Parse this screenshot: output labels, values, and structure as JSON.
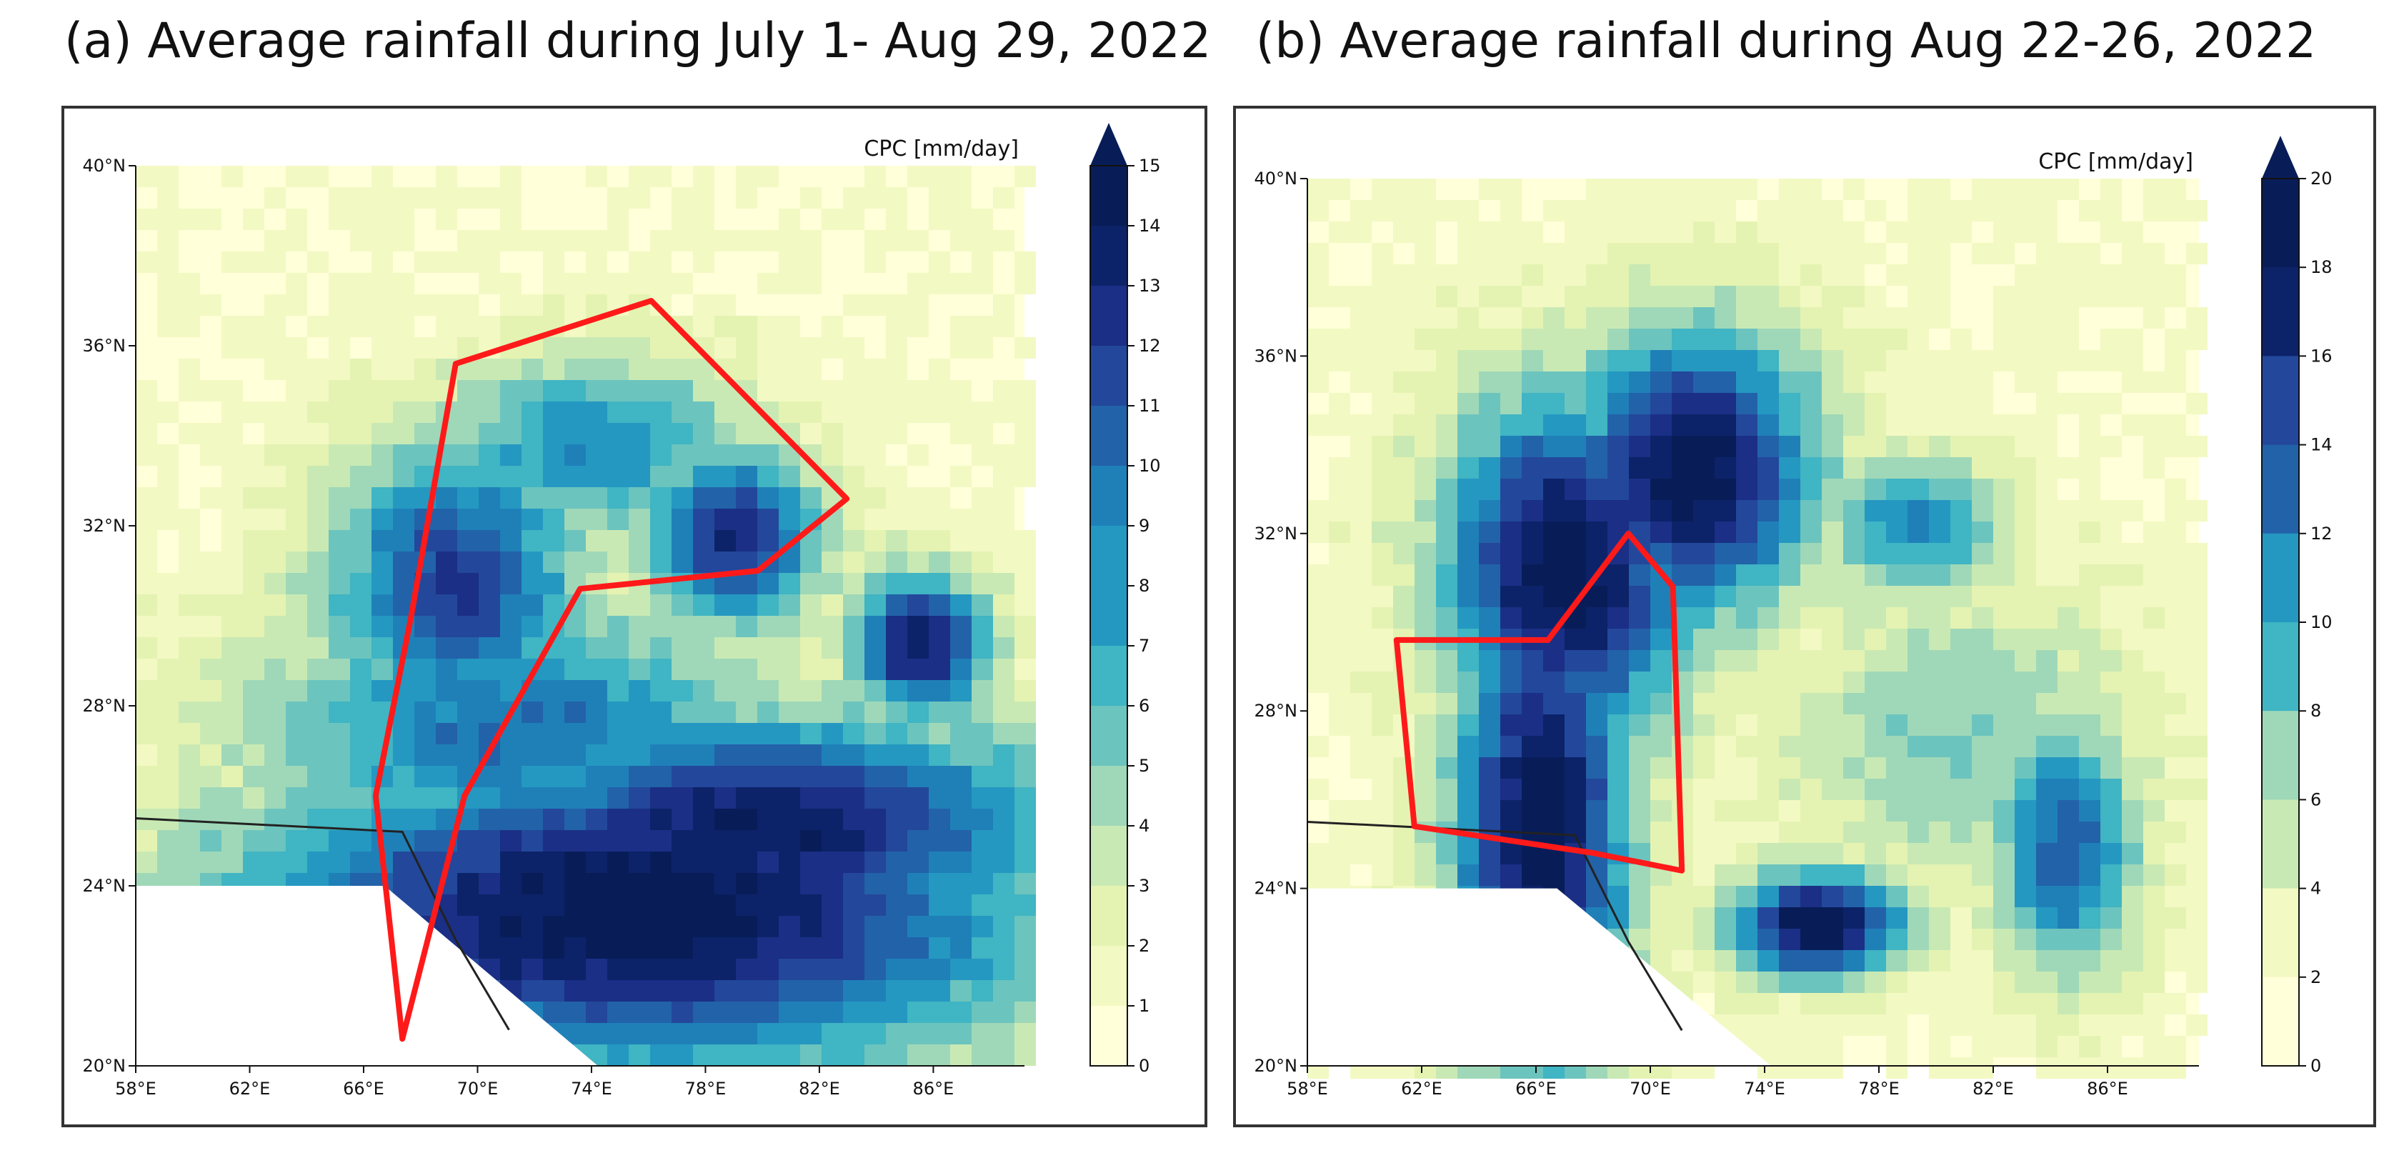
{
  "colors": {
    "scale": [
      "#ffffd9",
      "#f3f9c3",
      "#e4f3b2",
      "#c9e9b4",
      "#9fd8b8",
      "#6cc4be",
      "#40b5c3",
      "#2498c1",
      "#1f80b8",
      "#2262a9",
      "#23479b",
      "#1a2f85",
      "#0c2369",
      "#081d58"
    ],
    "boundary": "#ff1a1a",
    "coast": "#222222"
  },
  "panels": [
    {
      "id": "a",
      "title": "(a) Average rainfall during July 1- Aug 29, 2022",
      "unit_label": "CPC [mm/day]",
      "lat_ticks": [
        "40°N",
        "36°N",
        "32°N",
        "28°N",
        "24°N",
        "20°N"
      ],
      "lon_ticks": [
        "58°E",
        "62°E",
        "66°E",
        "70°E",
        "74°E",
        "78°E",
        "82°E",
        "86°E"
      ],
      "colorbar_ticks": [
        "15",
        "14",
        "13",
        "12",
        "11",
        "10",
        "9",
        "8",
        "7",
        "6",
        "5",
        "4",
        "3",
        "2",
        "1",
        "0"
      ],
      "colorbar_max": 15
    },
    {
      "id": "b",
      "title": "(b) Average rainfall during Aug 22-26, 2022",
      "unit_label": "CPC [mm/day]",
      "lat_ticks": [
        "40°N",
        "36°N",
        "32°N",
        "28°N",
        "24°N",
        "20°N"
      ],
      "lon_ticks": [
        "58°E",
        "62°E",
        "66°E",
        "70°E",
        "74°E",
        "78°E",
        "82°E",
        "86°E"
      ],
      "colorbar_ticks": [
        "20",
        "18",
        "16",
        "14",
        "12",
        "10",
        "8",
        "6",
        "4",
        "2",
        "0"
      ],
      "colorbar_max": 20
    }
  ]
}
